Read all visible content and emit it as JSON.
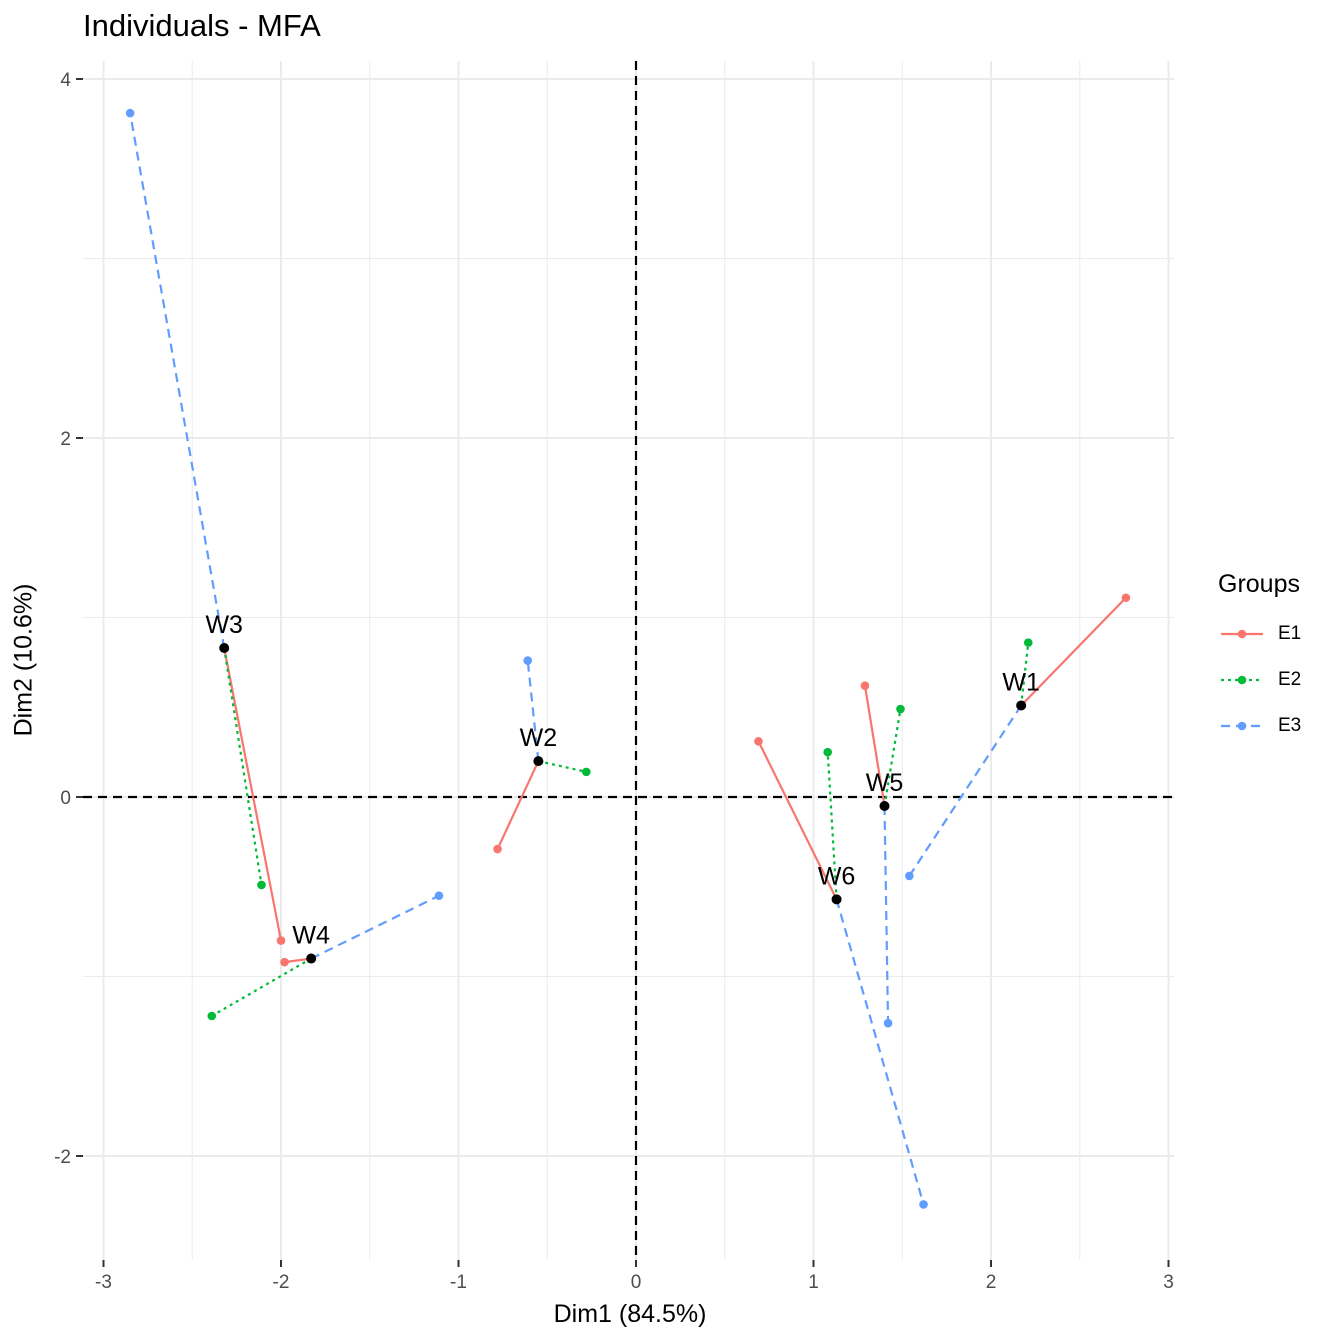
{
  "chart_data": {
    "type": "scatter",
    "title": "Individuals - MFA",
    "xlabel": "Dim1 (84.5%)",
    "ylabel": "Dim2 (10.6%)",
    "xlim": [
      -3,
      3
    ],
    "ylim": [
      -2.5,
      4
    ],
    "x_ticks": [
      {
        "value": -3,
        "label": "-3"
      },
      {
        "value": -2,
        "label": "-2"
      },
      {
        "value": -1,
        "label": "-1"
      },
      {
        "value": 0,
        "label": "0"
      },
      {
        "value": 1,
        "label": "1"
      },
      {
        "value": 2,
        "label": "2"
      },
      {
        "value": 3,
        "label": "3"
      }
    ],
    "y_ticks": [
      {
        "value": -2,
        "label": "-2"
      },
      {
        "value": 0,
        "label": "0"
      },
      {
        "value": 2,
        "label": "2"
      },
      {
        "value": 4,
        "label": "4"
      }
    ],
    "grid": true,
    "reference_lines": {
      "x": 0,
      "y": 0,
      "style": "dashed"
    },
    "legend": {
      "title": "Groups",
      "position": "right",
      "entries": [
        {
          "name": "E1",
          "color": "#F8766D",
          "dash": "solid"
        },
        {
          "name": "E2",
          "color": "#00BA38",
          "dash": "dotted"
        },
        {
          "name": "E3",
          "color": "#619CFF",
          "dash": "dashed"
        }
      ]
    },
    "individuals": [
      {
        "label": "W1",
        "x": 2.17,
        "y": 0.51,
        "partial": {
          "E1": [
            2.76,
            1.11
          ],
          "E2": [
            2.21,
            0.86
          ],
          "E3": [
            1.54,
            -0.44
          ]
        }
      },
      {
        "label": "W2",
        "x": -0.55,
        "y": 0.2,
        "partial": {
          "E1": [
            -0.78,
            -0.29
          ],
          "E2": [
            -0.28,
            0.14
          ],
          "E3": [
            -0.61,
            0.76
          ]
        }
      },
      {
        "label": "W3",
        "x": -2.32,
        "y": 0.83,
        "partial": {
          "E1": [
            -2.0,
            -0.8
          ],
          "E2": [
            -2.11,
            -0.49
          ],
          "E3": [
            -2.85,
            3.81
          ]
        }
      },
      {
        "label": "W4",
        "x": -1.83,
        "y": -0.9,
        "partial": {
          "E1": [
            -1.98,
            -0.92
          ],
          "E2": [
            -2.39,
            -1.22
          ],
          "E3": [
            -1.11,
            -0.55
          ]
        }
      },
      {
        "label": "W5",
        "x": 1.4,
        "y": -0.05,
        "partial": {
          "E1": [
            1.29,
            0.62
          ],
          "E2": [
            1.49,
            0.49
          ],
          "E3": [
            1.42,
            -1.26
          ]
        }
      },
      {
        "label": "W6",
        "x": 1.13,
        "y": -0.57,
        "partial": {
          "E1": [
            0.69,
            0.31
          ],
          "E2": [
            1.08,
            0.25
          ],
          "E3": [
            1.62,
            -2.27
          ]
        }
      }
    ]
  }
}
